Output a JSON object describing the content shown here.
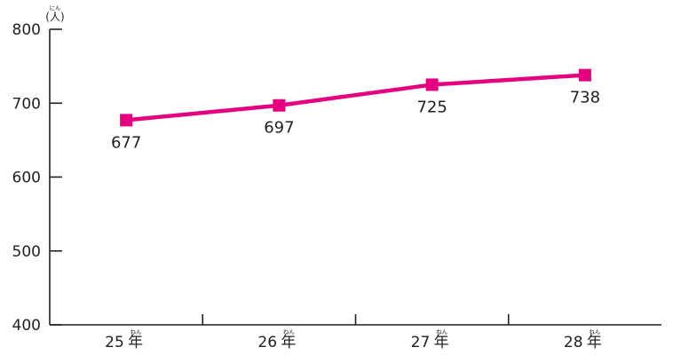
{
  "chart_data": {
    "type": "line",
    "categories": [
      "25",
      "26",
      "27",
      "28"
    ],
    "category_suffix": "年",
    "category_suffix_reading": "ねん",
    "series": [
      {
        "values": [
          677,
          697,
          725,
          738
        ],
        "color": "#e4007f",
        "marker": "square"
      }
    ],
    "data_labels": [
      "677",
      "697",
      "725",
      "738"
    ],
    "y_ticks": [
      "800",
      "700",
      "600",
      "500",
      "400"
    ],
    "ylim": [
      400,
      800
    ],
    "unit": "人",
    "unit_reading": "にん",
    "grid": false,
    "legend": "none",
    "title": "",
    "xlabel": "",
    "ylabel": ""
  }
}
